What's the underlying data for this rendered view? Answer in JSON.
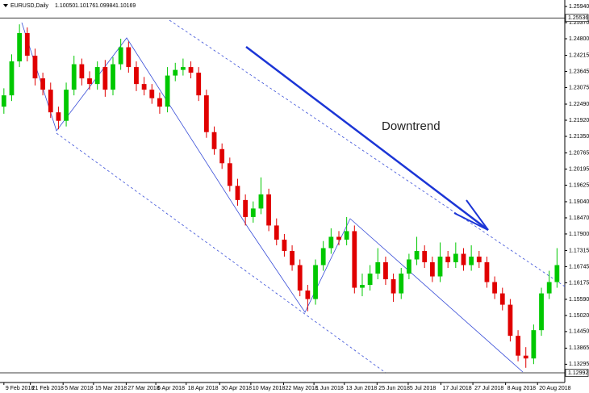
{
  "chart_data": {
    "type": "candlestick",
    "header": {
      "symbol": "EURUSD,Daily",
      "ohlc": [
        "1.10050",
        "1.10176",
        "1.09984",
        "1.10169"
      ]
    },
    "annotation": "Downtrend",
    "up_color": "#00c800",
    "down_color": "#e00000",
    "xlim": [
      -0.5,
      72
    ],
    "ylim": [
      1.1265,
      1.2617
    ],
    "xticks": [
      {
        "value": 0,
        "label": "9 Feb 2018"
      },
      {
        "value": 3.4,
        "label": "21 Feb 2018"
      },
      {
        "value": 7.6,
        "label": "5 Mar 2018"
      },
      {
        "value": 11.5,
        "label": "15 Mar 2018"
      },
      {
        "value": 15.7,
        "label": "27 Mar 2018"
      },
      {
        "value": 19.5,
        "label": "6 Apr 2018"
      },
      {
        "value": 23.4,
        "label": "18 Apr 2018"
      },
      {
        "value": 27.7,
        "label": "30 Apr 2018"
      },
      {
        "value": 31.7,
        "label": "10 May 2018"
      },
      {
        "value": 35.9,
        "label": "22 May 2018"
      },
      {
        "value": 39.8,
        "label": "1 Jun 2018"
      },
      {
        "value": 43.7,
        "label": "13 Jun 2018"
      },
      {
        "value": 47.9,
        "label": "25 Jun 2018"
      },
      {
        "value": 51.9,
        "label": "5 Jul 2018"
      },
      {
        "value": 56.1,
        "label": "17 Jul 2018"
      },
      {
        "value": 60.2,
        "label": "27 Jul 2018"
      },
      {
        "value": 64.4,
        "label": "8 Aug 2018"
      },
      {
        "value": 68.5,
        "label": "20 Aug 2018"
      }
    ],
    "yticks": [
      {
        "value": 1.2594,
        "label": "1.25940"
      },
      {
        "value": 1.2537,
        "label": "1.25370"
      },
      {
        "value": 1.248,
        "label": "1.24800"
      },
      1.24215,
      1.23645,
      1.23075,
      {
        "value": 1.2249,
        "label": "1.22490"
      },
      {
        "value": 1.2192,
        "label": "1.21920"
      },
      {
        "value": 1.2135,
        "label": "1.21350"
      },
      1.20765,
      1.20195,
      1.19625,
      {
        "value": 1.1904,
        "label": "1.19040"
      },
      {
        "value": 1.1847,
        "label": "1.18470"
      },
      {
        "value": 1.179,
        "label": "1.17900"
      },
      1.17315,
      1.16745,
      1.16175,
      {
        "value": 1.1559,
        "label": "1.15590"
      },
      {
        "value": 1.1502,
        "label": "1.15020"
      },
      {
        "value": 1.1445,
        "label": "1.14450"
      },
      1.13865,
      1.13295
    ],
    "price_markers": [
      1.25536,
      1.12992
    ],
    "open": [
      1.224,
      1.228,
      1.24,
      1.25,
      1.242,
      1.234,
      1.23,
      1.222,
      1.219,
      1.23,
      1.239,
      1.234,
      1.232,
      1.238,
      1.23,
      1.239,
      1.245,
      1.238,
      1.232,
      1.23,
      1.227,
      1.224,
      1.235,
      1.237,
      1.238,
      1.236,
      1.228,
      1.215,
      1.209,
      1.204,
      1.196,
      1.191,
      1.185,
      1.188,
      1.193,
      1.182,
      1.177,
      1.173,
      1.168,
      1.159,
      1.156,
      1.168,
      1.174,
      1.178,
      1.177,
      1.18,
      1.16,
      1.161,
      1.165,
      1.169,
      1.163,
      1.158,
      1.165,
      1.17,
      1.173,
      1.169,
      1.164,
      1.171,
      1.169,
      1.172,
      1.168,
      1.171,
      1.169,
      1.162,
      1.158,
      1.154,
      1.143,
      1.136,
      1.135,
      1.145,
      1.158,
      1.162
    ],
    "high": [
      1.2305,
      1.2425,
      1.2531,
      1.252,
      1.2445,
      1.236,
      1.2325,
      1.224,
      1.2325,
      1.242,
      1.241,
      1.2365,
      1.24,
      1.2405,
      1.2415,
      1.248,
      1.247,
      1.24,
      1.2345,
      1.232,
      1.229,
      1.238,
      1.2395,
      1.241,
      1.24,
      1.238,
      1.23,
      1.217,
      1.211,
      1.206,
      1.1985,
      1.193,
      1.1905,
      1.199,
      1.195,
      1.1845,
      1.179,
      1.175,
      1.17,
      1.161,
      1.17,
      1.1765,
      1.181,
      1.18,
      1.185,
      1.182,
      1.165,
      1.168,
      1.174,
      1.171,
      1.165,
      1.167,
      1.172,
      1.178,
      1.175,
      1.171,
      1.176,
      1.173,
      1.176,
      1.174,
      1.175,
      1.173,
      1.171,
      1.164,
      1.16,
      1.156,
      1.145,
      1.139,
      1.147,
      1.16,
      1.166,
      1.174
    ],
    "low": [
      1.2215,
      1.226,
      1.238,
      1.24,
      1.2315,
      1.228,
      1.22,
      1.216,
      1.217,
      1.228,
      1.2315,
      1.23,
      1.23,
      1.2275,
      1.228,
      1.237,
      1.236,
      1.2295,
      1.228,
      1.225,
      1.2215,
      1.222,
      1.233,
      1.235,
      1.234,
      1.226,
      1.213,
      1.207,
      1.202,
      1.194,
      1.189,
      1.182,
      1.183,
      1.186,
      1.18,
      1.175,
      1.171,
      1.166,
      1.157,
      1.1517,
      1.154,
      1.166,
      1.172,
      1.175,
      1.175,
      1.158,
      1.157,
      1.159,
      1.163,
      1.161,
      1.155,
      1.156,
      1.163,
      1.168,
      1.167,
      1.162,
      1.162,
      1.167,
      1.167,
      1.166,
      1.166,
      1.167,
      1.16,
      1.156,
      1.152,
      1.141,
      1.134,
      1.1317,
      1.133,
      1.143,
      1.156,
      1.16
    ],
    "close": [
      1.228,
      1.24,
      1.25,
      1.242,
      1.234,
      1.23,
      1.222,
      1.219,
      1.23,
      1.239,
      1.234,
      1.232,
      1.238,
      1.23,
      1.239,
      1.245,
      1.238,
      1.232,
      1.23,
      1.227,
      1.224,
      1.235,
      1.237,
      1.238,
      1.236,
      1.228,
      1.215,
      1.209,
      1.204,
      1.196,
      1.191,
      1.185,
      1.188,
      1.193,
      1.182,
      1.177,
      1.173,
      1.168,
      1.159,
      1.156,
      1.168,
      1.174,
      1.178,
      1.177,
      1.18,
      1.16,
      1.161,
      1.165,
      1.169,
      1.163,
      1.158,
      1.165,
      1.17,
      1.173,
      1.169,
      1.164,
      1.171,
      1.169,
      1.172,
      1.168,
      1.171,
      1.169,
      1.162,
      1.158,
      1.154,
      1.143,
      1.136,
      1.135,
      1.145,
      1.158,
      1.162,
      1.168
    ]
  }
}
